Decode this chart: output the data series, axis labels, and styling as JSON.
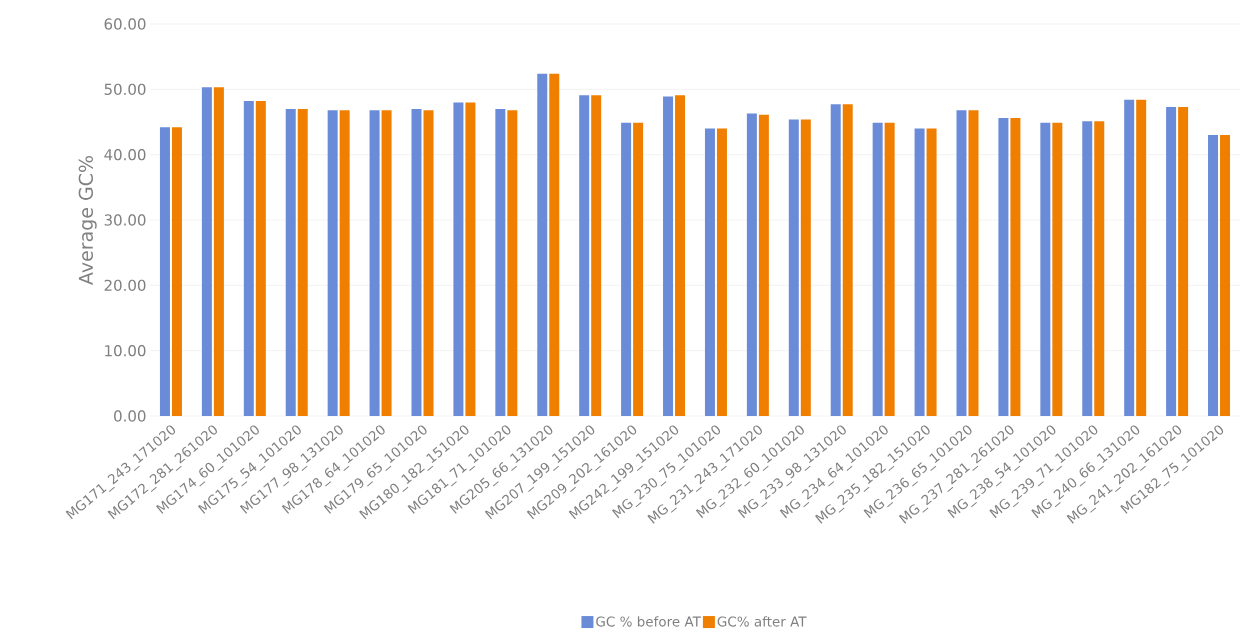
{
  "chart_data": {
    "type": "bar",
    "ylabel": "Average GC%",
    "categories": [
      "MG171_243_171020",
      "MG172_281_261020",
      "MG174_60_101020",
      "MG175_54_101020",
      "MG177_98_131020",
      "MG178_64_101020",
      "MG179_65_101020",
      "MG180_182_151020",
      "MG181_71_101020",
      "MG205_66_131020",
      "MG207_199_151020",
      "MG209_202_161020",
      "MG242_199_151020",
      "MG_230_75_101020",
      "MG_231_243_171020",
      "MG_232_60_101020",
      "MG_233_98_131020",
      "MG_234_64_101020",
      "MG_235_182_151020",
      "MG_236_65_101020",
      "MG_237_281_261020",
      "MG_238_54_101020",
      "MG_239_71_101020",
      "MG_240_66_131020",
      "MG_241_202_161020",
      "MG182_75_101020"
    ],
    "series": [
      {
        "name": "GC % before AT",
        "color": "#6a8bd8",
        "values": [
          44.2,
          50.3,
          48.2,
          47.0,
          46.8,
          46.8,
          47.0,
          48.0,
          47.0,
          52.4,
          49.1,
          44.9,
          48.9,
          44.0,
          46.3,
          45.4,
          47.7,
          44.9,
          44.0,
          46.8,
          45.6,
          44.9,
          45.1,
          48.4,
          47.3,
          43.0
        ]
      },
      {
        "name": "GC% after AT",
        "color": "#f07f00",
        "values": [
          44.2,
          50.3,
          48.2,
          47.0,
          46.8,
          46.8,
          46.8,
          48.0,
          46.8,
          52.4,
          49.1,
          44.9,
          49.1,
          44.0,
          46.1,
          45.4,
          47.7,
          44.9,
          44.0,
          46.8,
          45.6,
          44.9,
          45.1,
          48.4,
          47.3,
          43.0
        ]
      }
    ],
    "ylim": [
      0,
      60
    ],
    "yticks": [
      {
        "value": 0,
        "label": "0.00"
      },
      {
        "value": 10,
        "label": "10.00"
      },
      {
        "value": 20,
        "label": "20.00"
      },
      {
        "value": 30,
        "label": "30.00"
      },
      {
        "value": 40,
        "label": "40.00"
      },
      {
        "value": 50,
        "label": "50.00"
      },
      {
        "value": 60,
        "label": "60.00"
      }
    ],
    "grid": "y",
    "legend": "bottom"
  }
}
